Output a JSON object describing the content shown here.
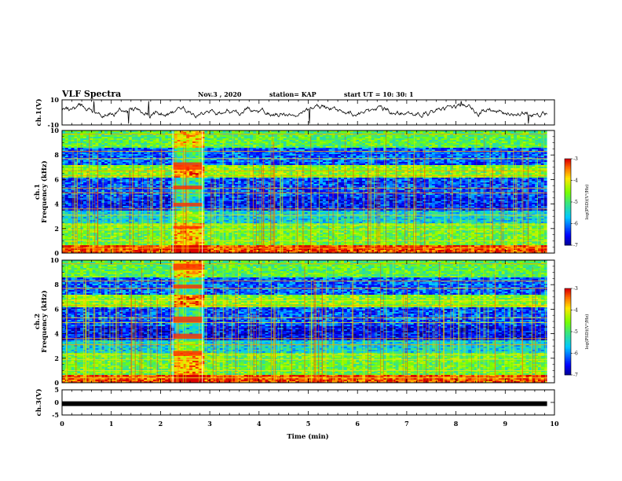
{
  "header": {
    "title": "VLF Spectra",
    "date": "Nov.3  , 2020",
    "station": "station= KAP",
    "start": "start  UT  =   10: 30: 1"
  },
  "chart_data": [
    {
      "type": "line",
      "name": "ch1-waveform",
      "ylabel": "ch.1(V)",
      "ylim": [
        -10,
        10
      ],
      "yticks": [
        "10",
        "-10"
      ],
      "xlim": [
        0,
        10
      ],
      "x_end_min": 9.85
    },
    {
      "type": "heatmap",
      "name": "ch1-spectrogram",
      "ylabel": "ch.1\nFrequency (kHz)",
      "ylim": [
        0,
        10
      ],
      "yticks": [
        "0",
        "2",
        "4",
        "6",
        "8",
        "10"
      ],
      "xlim": [
        0,
        10
      ],
      "x_end_min": 9.85,
      "burst_min": [
        2.25,
        2.85
      ],
      "colorbar": {
        "label": "log(PSD)(V²/Hz)",
        "range": [
          -7,
          -3
        ],
        "ticks": [
          "-3",
          "-4",
          "-5",
          "-6",
          "-7"
        ]
      }
    },
    {
      "type": "heatmap",
      "name": "ch2-spectrogram",
      "ylabel": "ch.2\nFrequency (kHz)",
      "ylim": [
        0,
        10
      ],
      "yticks": [
        "0",
        "2",
        "4",
        "6",
        "8",
        "10"
      ],
      "xlim": [
        0,
        10
      ],
      "x_end_min": 9.85,
      "burst_min": [
        2.25,
        2.85
      ],
      "colorbar": {
        "label": "log(PSD)(V²/Hz)",
        "range": [
          -7,
          -3
        ],
        "ticks": [
          "-3",
          "-4",
          "-5",
          "-6",
          "-7"
        ]
      }
    },
    {
      "type": "line",
      "name": "ch3-voltage",
      "ylabel": "ch.3(V)",
      "ylim": [
        -5,
        5
      ],
      "yticks": [
        "5",
        "0",
        "-5"
      ],
      "xlim": [
        0,
        10
      ],
      "x_end_min": 9.85,
      "level_v": -0.5
    }
  ],
  "x_axis": {
    "label": "Time  (min)",
    "ticks": [
      "0",
      "1",
      "2",
      "3",
      "4",
      "5",
      "6",
      "7",
      "8",
      "9",
      "10"
    ]
  }
}
